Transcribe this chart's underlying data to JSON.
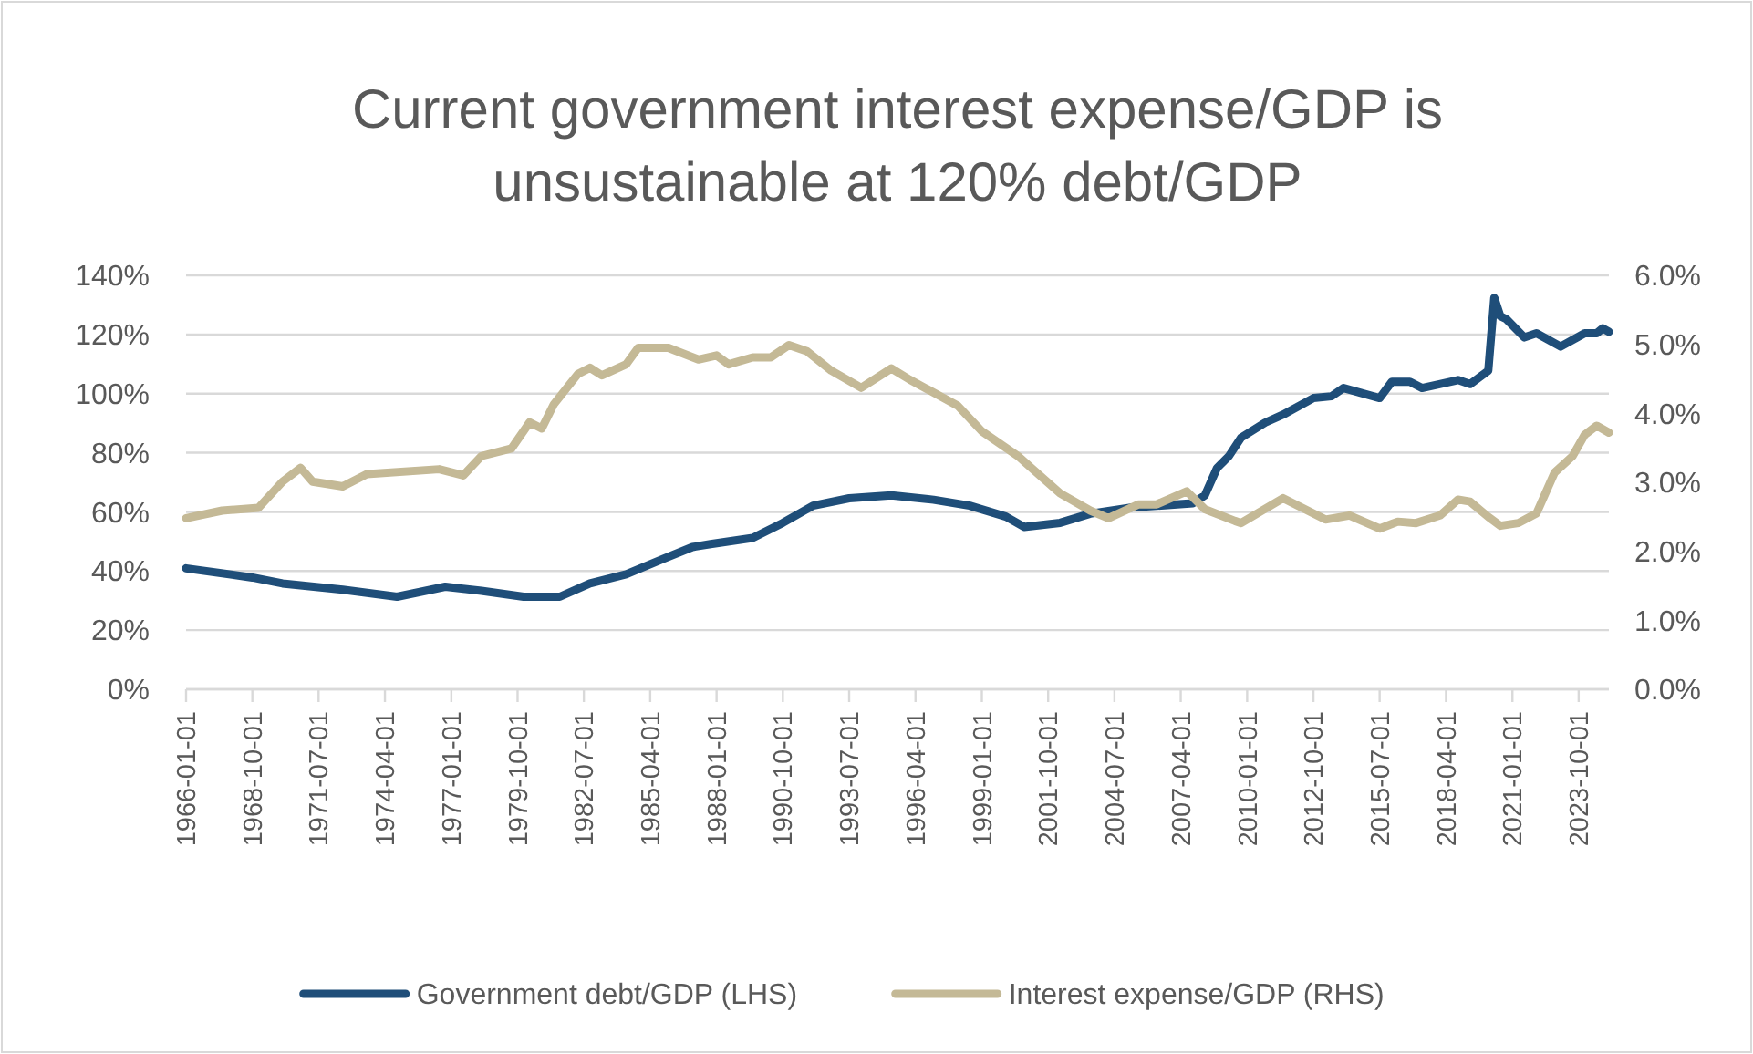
{
  "chart_data": {
    "type": "line",
    "title": "Current government interest expense/GDP is unsustainable at 120% debt/GDP",
    "xlim": [
      "1966-01-01",
      "2025-01-01"
    ],
    "xticks": [
      "1966-01-01",
      "1968-10-01",
      "1971-07-01",
      "1974-04-01",
      "1977-01-01",
      "1979-10-01",
      "1982-07-01",
      "1985-04-01",
      "1988-01-01",
      "1990-10-01",
      "1993-07-01",
      "1996-04-01",
      "1999-01-01",
      "2001-10-01",
      "2004-07-01",
      "2007-04-01",
      "2010-01-01",
      "2012-10-01",
      "2015-07-01",
      "2018-04-01",
      "2021-01-01",
      "2023-10-01"
    ],
    "ylim": [
      0,
      140
    ],
    "yticks": [
      {
        "value": 0,
        "label": "0%"
      },
      {
        "value": 20,
        "label": "20%"
      },
      {
        "value": 40,
        "label": "40%"
      },
      {
        "value": 60,
        "label": "60%"
      },
      {
        "value": 80,
        "label": "80%"
      },
      {
        "value": 100,
        "label": "100%"
      },
      {
        "value": 120,
        "label": "120%"
      },
      {
        "value": 140,
        "label": "140%"
      }
    ],
    "y2lim": [
      0,
      6
    ],
    "y2ticks": [
      {
        "value": 0,
        "label": "0.0%"
      },
      {
        "value": 1,
        "label": "1.0%"
      },
      {
        "value": 2,
        "label": "2.0%"
      },
      {
        "value": 3,
        "label": "3.0%"
      },
      {
        "value": 4,
        "label": "4.0%"
      },
      {
        "value": 5,
        "label": "5.0%"
      },
      {
        "value": 6,
        "label": "6.0%"
      }
    ],
    "grid": "y",
    "legend": "bottom",
    "marker": "none",
    "line_style": "solid",
    "series": [
      {
        "name": "Government debt/GDP (LHS)",
        "color": "#1f4e79",
        "x": [
          "1966-01-01",
          "1968-10-01",
          "1970-01-01",
          "1972-07-01",
          "1974-10-01",
          "1976-10-01",
          "1978-04-01",
          "1980-01-01",
          "1981-07-01",
          "1982-10-01",
          "1984-04-01",
          "1985-10-01",
          "1987-01-01",
          "1987-10-01",
          "1989-07-01",
          "1990-10-01",
          "1992-01-01",
          "1993-07-01",
          "1995-04-01",
          "1997-01-01",
          "1998-07-01",
          "2000-01-01",
          "2000-10-01",
          "2002-04-01",
          "2003-07-01",
          "2005-04-01",
          "2007-10-01",
          "2008-04-01",
          "2008-10-01",
          "2009-04-01",
          "2009-10-01",
          "2010-10-01",
          "2011-07-01",
          "2012-10-01",
          "2013-07-01",
          "2014-01-01",
          "2015-07-01",
          "2016-01-01",
          "2016-10-01",
          "2017-04-01",
          "2018-10-01",
          "2019-04-01",
          "2020-01-01",
          "2020-04-01",
          "2020-07-01",
          "2020-10-01",
          "2021-07-01",
          "2022-01-01",
          "2023-01-01",
          "2024-01-01",
          "2024-07-01",
          "2024-10-01",
          "2025-01-01"
        ],
        "values": [
          40.9,
          37.8,
          35.8,
          33.7,
          31.3,
          34.7,
          33.3,
          31.3,
          31.3,
          35.8,
          38.9,
          44,
          48.1,
          49.1,
          51.2,
          56.3,
          62.1,
          64.6,
          65.6,
          64.1,
          62.1,
          58.4,
          54.9,
          56.3,
          59.4,
          61.5,
          62.9,
          65.6,
          74.8,
          78.9,
          85.1,
          90.2,
          92.9,
          98.5,
          99.1,
          101.9,
          98.5,
          104,
          104,
          101.9,
          104.6,
          103.2,
          107.7,
          132.4,
          126.2,
          125.2,
          119,
          120.4,
          115.9,
          120.4,
          120.4,
          122.1,
          120.9
        ]
      },
      {
        "name": "Interest expense/GDP (RHS)",
        "color": "#c4b996",
        "axis": "y2",
        "x": [
          "1966-01-01",
          "1967-07-01",
          "1969-01-01",
          "1970-01-01",
          "1970-10-01",
          "1971-04-01",
          "1972-07-01",
          "1973-07-01",
          "1976-07-01",
          "1977-07-01",
          "1978-04-01",
          "1979-07-01",
          "1980-04-01",
          "1980-10-01",
          "1981-04-01",
          "1982-04-01",
          "1982-10-01",
          "1983-04-01",
          "1984-04-01",
          "1984-10-01",
          "1986-01-01",
          "1987-04-01",
          "1988-01-01",
          "1988-07-01",
          "1989-07-01",
          "1990-04-01",
          "1991-01-01",
          "1991-10-01",
          "1992-10-01",
          "1994-01-01",
          "1995-04-01",
          "1996-01-01",
          "1998-01-01",
          "1999-01-01",
          "2000-07-01",
          "2002-04-01",
          "2003-07-01",
          "2004-04-01",
          "2005-07-01",
          "2006-04-01",
          "2007-07-01",
          "2008-04-01",
          "2009-07-01",
          "2009-10-01",
          "2011-07-01",
          "2013-04-01",
          "2014-04-01",
          "2015-07-01",
          "2016-04-01",
          "2017-01-01",
          "2018-01-01",
          "2018-10-01",
          "2019-04-01",
          "2020-01-01",
          "2020-07-01",
          "2021-04-01",
          "2022-01-01",
          "2022-10-01",
          "2023-07-01",
          "2024-01-01",
          "2024-07-01",
          "2025-01-01"
        ],
        "values": [
          2.48,
          2.59,
          2.63,
          3.01,
          3.21,
          3.01,
          2.94,
          3.12,
          3.19,
          3.1,
          3.38,
          3.49,
          3.87,
          3.78,
          4.13,
          4.57,
          4.66,
          4.55,
          4.71,
          4.95,
          4.95,
          4.78,
          4.84,
          4.71,
          4.81,
          4.81,
          4.99,
          4.9,
          4.62,
          4.37,
          4.65,
          4.49,
          4.11,
          3.74,
          3.38,
          2.84,
          2.59,
          2.48,
          2.68,
          2.68,
          2.87,
          2.61,
          2.44,
          2.41,
          2.77,
          2.46,
          2.52,
          2.33,
          2.43,
          2.41,
          2.52,
          2.75,
          2.72,
          2.5,
          2.37,
          2.41,
          2.55,
          3.14,
          3.38,
          3.69,
          3.82,
          3.72
        ]
      }
    ]
  }
}
